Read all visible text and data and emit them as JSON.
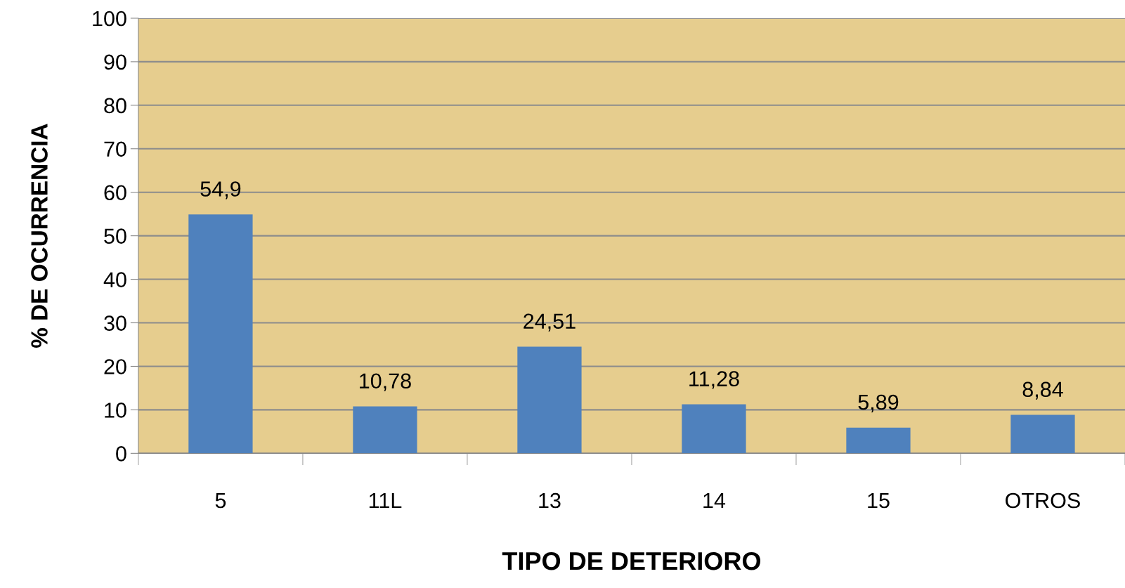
{
  "chart_data": {
    "type": "bar",
    "xlabel": "TIPO DE DETERIORO",
    "ylabel": "% DE OCURRENCIA",
    "categories": [
      "5",
      "11L",
      "13",
      "14",
      "15",
      "OTROS"
    ],
    "values": [
      54.9,
      10.78,
      24.51,
      11.28,
      5.89,
      8.84
    ],
    "value_labels": [
      "54,9",
      "10,78",
      "24,51",
      "11,28",
      "5,89",
      "8,84"
    ],
    "color": "#4f81bd",
    "ylim": [
      0,
      100
    ],
    "yticks": [
      0,
      10,
      20,
      30,
      40,
      50,
      60,
      70,
      80,
      90,
      100
    ],
    "grid": "y",
    "legend": false
  }
}
